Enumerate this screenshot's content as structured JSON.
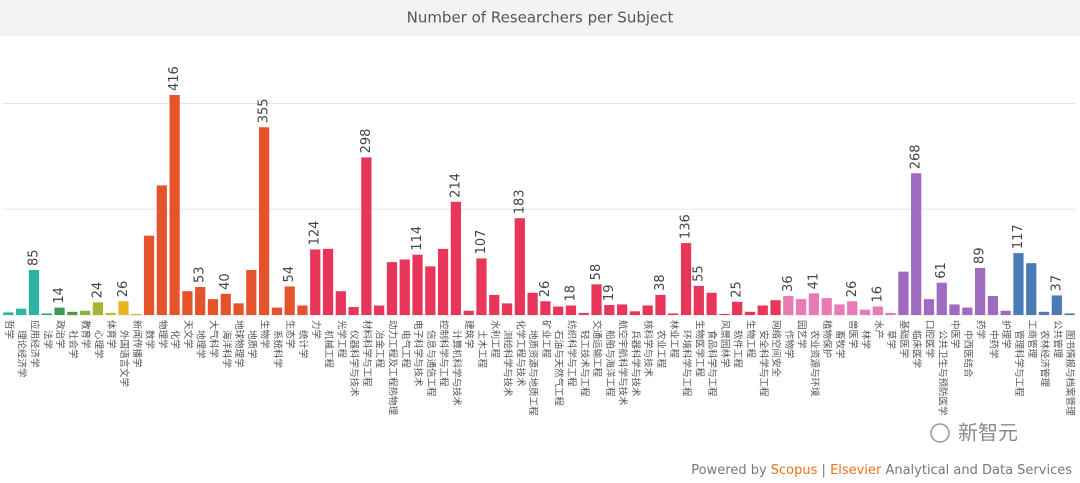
{
  "chart_data": {
    "type": "bar",
    "title": "Number of Researchers per Subject",
    "categories": [
      "哲学",
      "理论经济学",
      "应用经济学",
      "法学",
      "政治学",
      "社会学",
      "教育学",
      "心理学",
      "体育学",
      "外国语言文学",
      "新闻传播学",
      "数学",
      "物理学",
      "化学",
      "天文学",
      "地理学",
      "大气科学",
      "海洋科学",
      "地球物理学",
      "地质学",
      "生物学",
      "系统科学",
      "生态学",
      "统计学",
      "力学",
      "机械工程",
      "光学工程",
      "仪器科学与技术",
      "材料科学与工程",
      "冶金工程",
      "动力工程及工程热物理",
      "电气工程",
      "电子科学与技术",
      "信息与通信工程",
      "控制科学与工程",
      "计算机科学与技术",
      "建筑学",
      "土木工程",
      "水利工程",
      "测绘科学与技术",
      "化学工程与技术",
      "地质资源与地质工程",
      "矿业工程",
      "石油与天然气工程",
      "纺织科学与工程",
      "轻工技术与工程",
      "交通运输工程",
      "船舶与海洋工程",
      "航空宇航科学与技术",
      "兵器科学与技术",
      "核科学与技术",
      "农业工程",
      "林业工程",
      "环境科学与工程",
      "生物医学工程",
      "食品科学与工程",
      "风景园林学",
      "软件工程",
      "生物工程",
      "安全科学与工程",
      "网络空间安全",
      "作物学",
      "园艺学",
      "农业资源与环境",
      "植物保护",
      "畜牧学",
      "兽医学",
      "林学",
      "水产",
      "草学",
      "基础医学",
      "临床医学",
      "口腔医学",
      "公共卫生与预防医学",
      "中医学",
      "中西医结合",
      "药学",
      "中药学",
      "护理学",
      "管理科学与工程",
      "工商管理",
      "农林经济管理",
      "公共管理",
      "图书情报与档案管理"
    ],
    "values": [
      5,
      12,
      85,
      3,
      14,
      6,
      8,
      24,
      4,
      26,
      2,
      150,
      245,
      416,
      45,
      53,
      30,
      40,
      22,
      85,
      355,
      14,
      54,
      18,
      124,
      125,
      45,
      15,
      298,
      18,
      100,
      105,
      114,
      92,
      125,
      214,
      8,
      107,
      38,
      22,
      183,
      42,
      26,
      16,
      18,
      4,
      58,
      19,
      20,
      7,
      18,
      38,
      3,
      136,
      55,
      42,
      2,
      25,
      6,
      18,
      28,
      36,
      30,
      41,
      32,
      20,
      26,
      10,
      16,
      4,
      82,
      268,
      30,
      61,
      20,
      14,
      89,
      36,
      8,
      117,
      98,
      6,
      37,
      3
    ],
    "show_label": [
      false,
      false,
      true,
      false,
      true,
      false,
      false,
      true,
      false,
      true,
      false,
      false,
      false,
      true,
      false,
      true,
      false,
      true,
      false,
      false,
      true,
      false,
      true,
      false,
      true,
      false,
      false,
      false,
      true,
      false,
      false,
      false,
      true,
      false,
      false,
      true,
      false,
      true,
      false,
      false,
      true,
      false,
      true,
      false,
      true,
      false,
      true,
      true,
      false,
      false,
      false,
      true,
      false,
      true,
      true,
      false,
      false,
      true,
      false,
      false,
      false,
      true,
      false,
      true,
      false,
      false,
      true,
      false,
      true,
      false,
      false,
      true,
      false,
      true,
      false,
      false,
      true,
      false,
      false,
      true,
      false,
      false,
      true,
      false
    ],
    "colors": [
      "#2bb5a7",
      "#2bb5a7",
      "#2ab3a3",
      "#3ea06f",
      "#3e9a55",
      "#4a9a44",
      "#8bb33c",
      "#a8b82e",
      "#c6b928",
      "#e8b520",
      "#f0a820",
      "#e5532c",
      "#e5532c",
      "#e5532c",
      "#e5532c",
      "#e5532c",
      "#e5532c",
      "#e5532c",
      "#e5532c",
      "#e5532c",
      "#e5532c",
      "#e5532c",
      "#e5532c",
      "#e5532c",
      "#e8365a",
      "#e8365a",
      "#e8365a",
      "#e8365a",
      "#e8365a",
      "#e8365a",
      "#e8365a",
      "#e8365a",
      "#e8365a",
      "#e8365a",
      "#e8365a",
      "#e8365a",
      "#e8365a",
      "#e8365a",
      "#e8365a",
      "#e8365a",
      "#e8365a",
      "#e8365a",
      "#e8365a",
      "#e8365a",
      "#e8365a",
      "#e8365a",
      "#e8365a",
      "#e8365a",
      "#e8365a",
      "#e8365a",
      "#e8365a",
      "#e8365a",
      "#e8365a",
      "#e8365a",
      "#e8365a",
      "#e8365a",
      "#e8365a",
      "#e8365a",
      "#e8365a",
      "#e8365a",
      "#e8365a",
      "#e87ab5",
      "#e87ab5",
      "#e87ab5",
      "#e87ab5",
      "#e87ab5",
      "#e87ab5",
      "#e87ab5",
      "#e87ab5",
      "#e87ab5",
      "#a06ac0",
      "#a06ac0",
      "#a06ac0",
      "#a06ac0",
      "#a06ac0",
      "#a06ac0",
      "#a06ac0",
      "#a06ac0",
      "#a06ac0",
      "#4a7bb5",
      "#4a7bb5",
      "#4a7bb5",
      "#4a7bb5",
      "#4a7bb5"
    ],
    "ylim": [
      0,
      520
    ],
    "yticks": [
      0,
      200,
      400
    ],
    "grid": true
  },
  "footer": {
    "powered": "Powered by ",
    "scopus": "Scopus",
    "sep": " | ",
    "elsevier": "Elsevier",
    "rest": " Analytical and Data Services"
  },
  "watermark": "新智元"
}
